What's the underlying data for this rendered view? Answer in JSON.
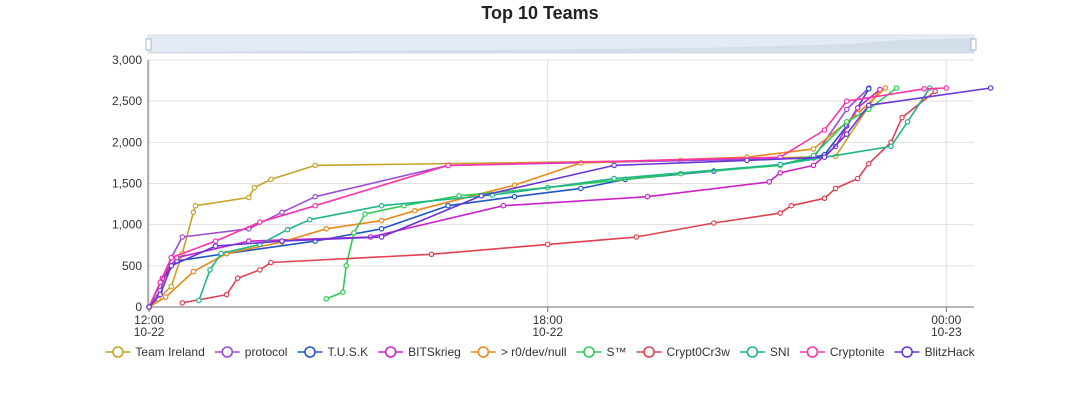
{
  "chart_data": {
    "type": "line",
    "title": "Top 10 Teams",
    "xlabel": "",
    "ylabel": "",
    "ylim": [
      0,
      3000
    ],
    "yticks": [
      0,
      500,
      1000,
      1500,
      2000,
      2500,
      3000
    ],
    "ytick_labels": [
      "0",
      "500",
      "1,000",
      "1,500",
      "2,000",
      "2,500",
      "3,000"
    ],
    "xlim": [
      "2023-10-22 11:59",
      "2023-10-23 00:25"
    ],
    "xticks": [
      {
        "time": "2023-10-22 12:00",
        "label1": "12:00",
        "label2": "10-22"
      },
      {
        "time": "2023-10-22 18:00",
        "label1": "18:00",
        "label2": "10-22"
      },
      {
        "time": "2023-10-23 00:00",
        "label1": "00:00",
        "label2": "10-23"
      }
    ],
    "grid": true,
    "legend_position": "bottom",
    "zoom_slider": true,
    "series": [
      {
        "name": "Team Ireland",
        "color": "#c9a227",
        "points": [
          [
            "2023-10-22 12:00",
            0
          ],
          [
            "2023-10-22 12:08",
            100
          ],
          [
            "2023-10-22 12:20",
            250
          ],
          [
            "2023-10-22 12:30",
            650
          ],
          [
            "2023-10-22 12:40",
            1150
          ],
          [
            "2023-10-22 12:42",
            1230
          ],
          [
            "2023-10-22 13:30",
            1330
          ],
          [
            "2023-10-22 13:35",
            1450
          ],
          [
            "2023-10-22 13:50",
            1550
          ],
          [
            "2023-10-22 14:30",
            1720
          ],
          [
            "2023-10-22 20:00",
            1780
          ],
          [
            "2023-10-22 22:20",
            1830
          ],
          [
            "2023-10-22 23:00",
            2640
          ]
        ]
      },
      {
        "name": "protocol",
        "color": "#9b4dd6",
        "points": [
          [
            "2023-10-22 12:00",
            0
          ],
          [
            "2023-10-22 12:10",
            200
          ],
          [
            "2023-10-22 12:20",
            600
          ],
          [
            "2023-10-22 12:30",
            850
          ],
          [
            "2023-10-22 13:30",
            950
          ],
          [
            "2023-10-22 14:00",
            1150
          ],
          [
            "2023-10-22 14:30",
            1340
          ],
          [
            "2023-10-22 16:30",
            1720
          ],
          [
            "2023-10-22 22:00",
            1810
          ],
          [
            "2023-10-22 22:30",
            2400
          ],
          [
            "2023-10-22 22:50",
            2660
          ]
        ]
      },
      {
        "name": "T.U.S.K",
        "color": "#1e56c4",
        "points": [
          [
            "2023-10-22 12:00",
            0
          ],
          [
            "2023-10-22 12:10",
            300
          ],
          [
            "2023-10-22 12:25",
            560
          ],
          [
            "2023-10-22 13:10",
            650
          ],
          [
            "2023-10-22 14:30",
            800
          ],
          [
            "2023-10-22 15:30",
            950
          ],
          [
            "2023-10-22 16:30",
            1230
          ],
          [
            "2023-10-22 17:30",
            1340
          ],
          [
            "2023-10-22 18:30",
            1440
          ],
          [
            "2023-10-22 19:10",
            1550
          ],
          [
            "2023-10-22 20:30",
            1650
          ],
          [
            "2023-10-22 21:30",
            1730
          ],
          [
            "2023-10-22 22:10",
            1850
          ],
          [
            "2023-10-22 22:30",
            2200
          ],
          [
            "2023-10-22 22:50",
            2650
          ]
        ]
      },
      {
        "name": "BITSkrieg",
        "color": "#cc22cc",
        "points": [
          [
            "2023-10-22 12:00",
            0
          ],
          [
            "2023-10-22 12:12",
            350
          ],
          [
            "2023-10-22 12:25",
            600
          ],
          [
            "2023-10-22 13:30",
            800
          ],
          [
            "2023-10-22 15:20",
            850
          ],
          [
            "2023-10-22 17:20",
            1230
          ],
          [
            "2023-10-22 19:30",
            1340
          ],
          [
            "2023-10-22 21:20",
            1520
          ],
          [
            "2023-10-22 21:30",
            1630
          ],
          [
            "2023-10-22 22:00",
            1720
          ],
          [
            "2023-10-22 22:20",
            1950
          ],
          [
            "2023-10-22 22:40",
            2420
          ],
          [
            "2023-10-22 23:00",
            2640
          ]
        ]
      },
      {
        "name": "> r0/dev/null",
        "color": "#e88a1a",
        "points": [
          [
            "2023-10-22 12:00",
            0
          ],
          [
            "2023-10-22 12:15",
            120
          ],
          [
            "2023-10-22 12:40",
            430
          ],
          [
            "2023-10-22 13:10",
            650
          ],
          [
            "2023-10-22 14:00",
            790
          ],
          [
            "2023-10-22 14:40",
            950
          ],
          [
            "2023-10-22 15:30",
            1050
          ],
          [
            "2023-10-22 16:00",
            1170
          ],
          [
            "2023-10-22 17:30",
            1480
          ],
          [
            "2023-10-22 18:30",
            1750
          ],
          [
            "2023-10-22 21:00",
            1820
          ],
          [
            "2023-10-22 22:00",
            1920
          ],
          [
            "2023-10-22 22:40",
            2350
          ],
          [
            "2023-10-22 23:05",
            2660
          ]
        ]
      },
      {
        "name": "S™",
        "color": "#2ecc55",
        "points": [
          [
            "2023-10-22 14:40",
            100
          ],
          [
            "2023-10-22 14:55",
            180
          ],
          [
            "2023-10-22 14:58",
            500
          ],
          [
            "2023-10-22 15:05",
            900
          ],
          [
            "2023-10-22 15:15",
            1130
          ],
          [
            "2023-10-22 15:50",
            1230
          ],
          [
            "2023-10-22 16:40",
            1350
          ],
          [
            "2023-10-22 18:00",
            1450
          ],
          [
            "2023-10-22 20:00",
            1620
          ],
          [
            "2023-10-22 21:30",
            1720
          ],
          [
            "2023-10-22 22:00",
            1840
          ],
          [
            "2023-10-22 22:30",
            2250
          ],
          [
            "2023-10-22 22:50",
            2400
          ],
          [
            "2023-10-22 23:15",
            2660
          ]
        ]
      },
      {
        "name": "Crypt0Cr3w",
        "color": "#e04050",
        "points": [
          [
            "2023-10-22 12:30",
            50
          ],
          [
            "2023-10-22 13:10",
            150
          ],
          [
            "2023-10-22 13:20",
            350
          ],
          [
            "2023-10-22 13:40",
            450
          ],
          [
            "2023-10-22 13:50",
            540
          ],
          [
            "2023-10-22 16:15",
            640
          ],
          [
            "2023-10-22 18:00",
            760
          ],
          [
            "2023-10-22 19:20",
            850
          ],
          [
            "2023-10-22 20:30",
            1020
          ],
          [
            "2023-10-22 21:30",
            1140
          ],
          [
            "2023-10-22 21:40",
            1230
          ],
          [
            "2023-10-22 22:10",
            1320
          ],
          [
            "2023-10-22 22:20",
            1440
          ],
          [
            "2023-10-22 22:40",
            1560
          ],
          [
            "2023-10-22 22:50",
            1740
          ],
          [
            "2023-10-22 23:10",
            2000
          ],
          [
            "2023-10-22 23:20",
            2300
          ],
          [
            "2023-10-22 23:50",
            2620
          ]
        ]
      },
      {
        "name": "SNI",
        "color": "#1fb58a",
        "points": [
          [
            "2023-10-22 12:45",
            80
          ],
          [
            "2023-10-22 12:55",
            450
          ],
          [
            "2023-10-22 13:05",
            650
          ],
          [
            "2023-10-22 13:40",
            760
          ],
          [
            "2023-10-22 14:05",
            940
          ],
          [
            "2023-10-22 14:25",
            1060
          ],
          [
            "2023-10-22 15:30",
            1230
          ],
          [
            "2023-10-22 17:10",
            1360
          ],
          [
            "2023-10-22 19:00",
            1560
          ],
          [
            "2023-10-22 21:30",
            1730
          ],
          [
            "2023-10-22 23:10",
            1950
          ],
          [
            "2023-10-22 23:25",
            2250
          ],
          [
            "2023-10-22 23:45",
            2660
          ]
        ]
      },
      {
        "name": "Cryptonite",
        "color": "#ff33aa",
        "points": [
          [
            "2023-10-22 12:00",
            0
          ],
          [
            "2023-10-22 12:10",
            300
          ],
          [
            "2023-10-22 12:20",
            600
          ],
          [
            "2023-10-22 13:00",
            800
          ],
          [
            "2023-10-22 13:40",
            1030
          ],
          [
            "2023-10-22 14:30",
            1230
          ],
          [
            "2023-10-22 16:30",
            1720
          ],
          [
            "2023-10-22 21:30",
            1820
          ],
          [
            "2023-10-22 22:10",
            2150
          ],
          [
            "2023-10-22 22:30",
            2500
          ],
          [
            "2023-10-22 23:40",
            2650
          ],
          [
            "2023-10-23 00:00",
            2660
          ]
        ]
      },
      {
        "name": "BlitzHack",
        "color": "#6a35d6",
        "points": [
          [
            "2023-10-22 12:00",
            0
          ],
          [
            "2023-10-22 12:10",
            150
          ],
          [
            "2023-10-22 12:20",
            500
          ],
          [
            "2023-10-22 13:00",
            740
          ],
          [
            "2023-10-22 14:00",
            800
          ],
          [
            "2023-10-22 15:30",
            850
          ],
          [
            "2023-10-22 17:00",
            1350
          ],
          [
            "2023-10-22 19:00",
            1720
          ],
          [
            "2023-10-22 21:00",
            1780
          ],
          [
            "2023-10-22 22:10",
            1820
          ],
          [
            "2023-10-22 22:30",
            2100
          ],
          [
            "2023-10-22 22:50",
            2450
          ],
          [
            "2023-10-23 00:40",
            2660
          ]
        ]
      }
    ]
  }
}
